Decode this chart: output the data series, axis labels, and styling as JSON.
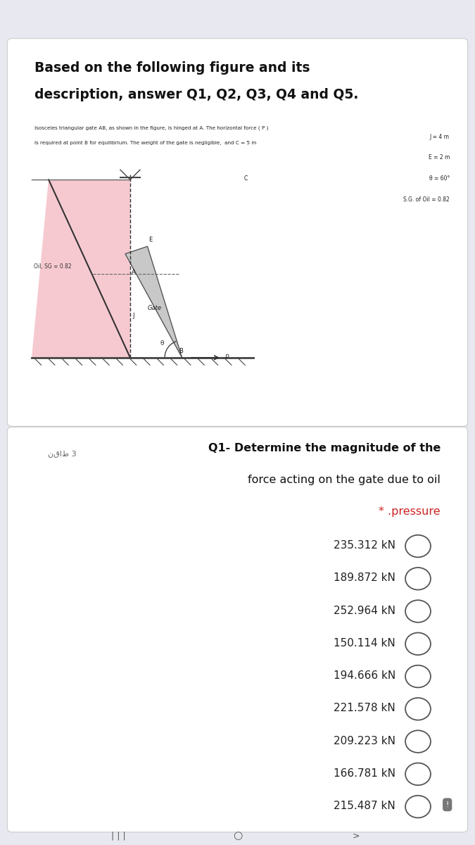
{
  "bg_color": "#e8e8f0",
  "phone_bar_color": "#7B2FBE",
  "card1_bg": "#ffffff",
  "card2_bg": "#ffffff",
  "main_title_line1": "Based on the following figure and its",
  "main_title_line2": "description, answer Q1, Q2, Q3, Q4 and Q5.",
  "desc_text": "Isosceles triangular gate AB, as shown in the figure, is hinged at A. The horizontal force ( P )\nis required at point B for equilibrium. The weight of the gate is negligible,  and C = 5 m",
  "params": [
    "J = 4 m",
    "E = 2 m",
    "θ = 60°",
    "S.G. of Oil = 0.82"
  ],
  "oil_label": "Oil, SG = 0.82",
  "gate_label": "Gate",
  "q1_points": "نقاط 3",
  "q1_line1": "Q1- Determine the magnitude of the",
  "q1_line2": "force acting on the gate due to oil",
  "q1_line3": "* .pressure",
  "options": [
    "235.312 kN",
    "189.872 kN",
    "252.964 kN",
    "150.114 kN",
    "194.666 kN",
    "221.578 kN",
    "209.223 kN",
    "166.781 kN",
    "215.487 kN"
  ]
}
